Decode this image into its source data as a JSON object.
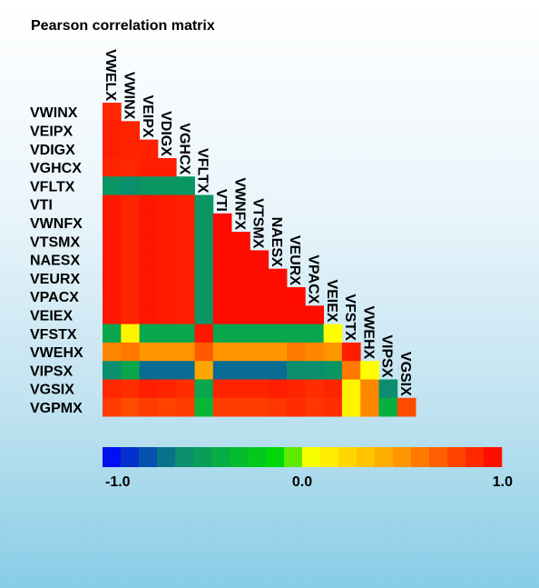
{
  "chart_data": {
    "type": "heatmap",
    "title": "Pearson correlation matrix",
    "labels": [
      "VWELX",
      "VWINX",
      "VEIPX",
      "VDIGX",
      "VGHCX",
      "VFLTX",
      "VTI",
      "VWNFX",
      "VTSMX",
      "NAESX",
      "VEURX",
      "VPACX",
      "VEIEX",
      "VFSTX",
      "VWEHX",
      "VIPSX",
      "VGSIX",
      "VGPMX"
    ],
    "values": [
      [
        0.87
      ],
      [
        0.9,
        0.88
      ],
      [
        0.9,
        0.88,
        0.89
      ],
      [
        0.88,
        0.87,
        0.9,
        0.9
      ],
      [
        -0.55,
        -0.6,
        -0.55,
        -0.55,
        -0.55
      ],
      [
        0.92,
        0.88,
        0.93,
        0.91,
        0.9,
        -0.55
      ],
      [
        0.92,
        0.88,
        0.93,
        0.91,
        0.9,
        -0.55,
        0.96
      ],
      [
        0.92,
        0.88,
        0.93,
        0.91,
        0.9,
        -0.55,
        0.96,
        0.96
      ],
      [
        0.92,
        0.88,
        0.93,
        0.91,
        0.9,
        -0.55,
        0.96,
        0.96,
        0.96
      ],
      [
        0.92,
        0.88,
        0.93,
        0.91,
        0.9,
        -0.55,
        0.96,
        0.96,
        0.96,
        0.96
      ],
      [
        0.92,
        0.88,
        0.93,
        0.91,
        0.9,
        -0.55,
        0.96,
        0.96,
        0.96,
        0.96,
        0.96
      ],
      [
        0.92,
        0.88,
        0.93,
        0.91,
        0.9,
        -0.55,
        0.96,
        0.96,
        0.96,
        0.96,
        0.96,
        0.96
      ],
      [
        -0.45,
        0.1,
        -0.45,
        -0.45,
        -0.45,
        0.93,
        -0.45,
        -0.45,
        -0.45,
        -0.45,
        -0.45,
        -0.45,
        0.05
      ],
      [
        0.55,
        0.6,
        0.5,
        0.5,
        0.5,
        0.7,
        0.5,
        0.5,
        0.5,
        0.5,
        0.6,
        0.55,
        0.5,
        0.9
      ],
      [
        -0.6,
        -0.45,
        -0.7,
        -0.7,
        -0.7,
        0.45,
        -0.7,
        -0.7,
        -0.7,
        -0.7,
        -0.6,
        -0.6,
        -0.55,
        0.6,
        0.05
      ],
      [
        0.87,
        0.85,
        0.9,
        0.88,
        0.85,
        -0.45,
        0.88,
        0.88,
        0.88,
        0.9,
        0.88,
        0.85,
        0.88,
        0.1,
        0.55,
        -0.6
      ],
      [
        0.8,
        0.75,
        0.8,
        0.78,
        0.8,
        -0.35,
        0.8,
        0.8,
        0.8,
        0.82,
        0.85,
        0.82,
        0.85,
        0.1,
        0.55,
        -0.4,
        0.75
      ]
    ],
    "colorbar": {
      "min": -1.0,
      "max": 1.0,
      "tick_labels": [
        "-1.0",
        "0.0",
        "1.0"
      ],
      "tick_values": [
        -1.0,
        0.0,
        1.0
      ],
      "segments": 22
    },
    "colors": {
      "blue": "#0000ff",
      "teal": "#0b8e6e",
      "green": "#00dd00",
      "yellow": "#ffff00",
      "orange": "#ffa500",
      "red": "#ff0000"
    },
    "grid": false,
    "legend_position": "bottom"
  }
}
